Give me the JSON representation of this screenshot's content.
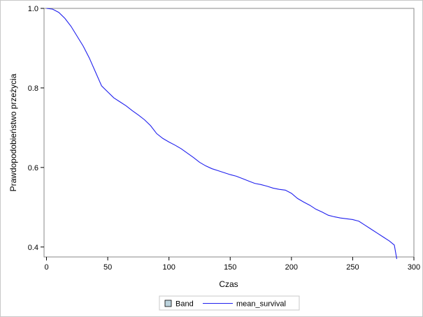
{
  "chart_data": {
    "type": "line",
    "title": "",
    "xlabel": "Czas",
    "ylabel": "Prawdopodobieństwo przeżycia",
    "xlim": [
      -2,
      300
    ],
    "ylim": [
      0.375,
      1.0
    ],
    "xticks": [
      0,
      50,
      100,
      150,
      200,
      250,
      300
    ],
    "yticks": [
      0.4,
      0.6,
      0.8,
      1.0
    ],
    "xtick_labels": [
      "0",
      "50",
      "100",
      "150",
      "200",
      "250",
      "300"
    ],
    "ytick_labels": [
      "0.4",
      "0.6",
      "0.8",
      "1.0"
    ],
    "grid": false,
    "legend_position": "bottom",
    "legend": [
      {
        "label": "Band",
        "kind": "box",
        "color": "#bcd3dd"
      },
      {
        "label": "mean_survival",
        "kind": "line",
        "color": "#2020ee"
      }
    ],
    "series": [
      {
        "name": "mean_survival",
        "color": "#2020ee",
        "x": [
          0,
          5,
          10,
          15,
          20,
          25,
          30,
          35,
          40,
          45,
          50,
          55,
          60,
          65,
          70,
          75,
          80,
          85,
          90,
          95,
          100,
          105,
          110,
          115,
          120,
          125,
          130,
          135,
          140,
          145,
          150,
          155,
          160,
          165,
          170,
          175,
          180,
          185,
          190,
          195,
          200,
          205,
          210,
          215,
          220,
          225,
          230,
          235,
          240,
          245,
          250,
          255,
          260,
          265,
          270,
          275,
          280,
          284,
          286
        ],
        "y": [
          1.0,
          0.998,
          0.99,
          0.975,
          0.955,
          0.93,
          0.905,
          0.875,
          0.84,
          0.805,
          0.79,
          0.775,
          0.765,
          0.755,
          0.743,
          0.732,
          0.72,
          0.705,
          0.685,
          0.673,
          0.664,
          0.656,
          0.647,
          0.636,
          0.625,
          0.613,
          0.604,
          0.597,
          0.592,
          0.587,
          0.582,
          0.578,
          0.572,
          0.566,
          0.56,
          0.557,
          0.553,
          0.548,
          0.545,
          0.543,
          0.535,
          0.522,
          0.513,
          0.505,
          0.495,
          0.488,
          0.48,
          0.476,
          0.473,
          0.471,
          0.469,
          0.465,
          0.455,
          0.445,
          0.435,
          0.425,
          0.415,
          0.405,
          0.37
        ]
      }
    ]
  }
}
